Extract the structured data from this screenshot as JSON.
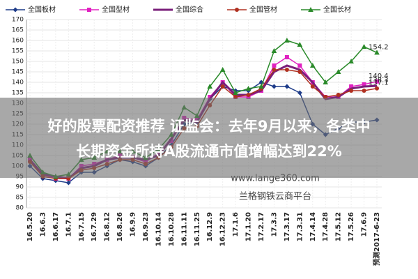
{
  "chart_data": {
    "type": "line",
    "categories": [
      "16.5.20",
      "16.6.3",
      "16.6.17",
      "16.7.1",
      "16.7.15",
      "16.7.29",
      "16.8.12",
      "16.8.26",
      "16.9.9",
      "16.9.23",
      "16.10.14",
      "16.10.28",
      "16.11.11",
      "16.11.25",
      "16.12.9",
      "16.12.23",
      "17.1.6",
      "17.1.20",
      "17.2.17",
      "17.3.3",
      "17.3.17",
      "17.3.31",
      "17.4.14",
      "17.4.28",
      "17.5.12",
      "17.5.26",
      "17.6.9",
      "预测2017-6-23"
    ],
    "series": [
      {
        "name": "全国板材",
        "color": "#1f3d8a",
        "marker": "diamond",
        "values": [
          100,
          94,
          93,
          92,
          97,
          97,
          100,
          103,
          102,
          100,
          104,
          110,
          120,
          121,
          132,
          138,
          136,
          136,
          140,
          138,
          138,
          135,
          120,
          115,
          118,
          121,
          121,
          122
        ]
      },
      {
        "name": "全国型材",
        "color": "#e020c0",
        "marker": "square",
        "values": [
          103,
          96,
          94,
          94,
          100,
          101,
          103,
          105,
          104,
          102,
          106,
          112,
          123,
          122,
          133,
          140,
          133,
          133,
          136,
          148,
          152,
          148,
          140,
          133,
          133,
          138,
          139,
          140.4
        ],
        "value_labels": {
          "27": "140.4"
        }
      },
      {
        "name": "全国综合",
        "color": "#7a1f7a",
        "marker": "none",
        "values": [
          103,
          96,
          95,
          94,
          99,
          100,
          103,
          104,
          104,
          103,
          105,
          113,
          122,
          121,
          132,
          140,
          134,
          134,
          136,
          145,
          148,
          146,
          140,
          132,
          133,
          137,
          138,
          138.3
        ],
        "value_labels": {
          "27": "138.3"
        }
      },
      {
        "name": "全国管材",
        "color": "#b03020",
        "marker": "circle",
        "values": [
          102,
          95,
          94,
          94,
          98,
          99,
          101,
          103,
          103,
          101,
          104,
          109,
          118,
          119,
          129,
          138,
          133,
          134,
          137,
          146,
          146,
          145,
          138,
          133,
          134,
          136,
          136,
          137.1
        ],
        "value_labels": {
          "27": "137.1"
        }
      },
      {
        "name": "全国长材",
        "color": "#2a8a2a",
        "marker": "triangle",
        "values": [
          105,
          97,
          95,
          96,
          103,
          104,
          107,
          107,
          107,
          104,
          108,
          115,
          128,
          124,
          138,
          146,
          135,
          137,
          138,
          155,
          160,
          158,
          148,
          140,
          145,
          150,
          157,
          154.2
        ],
        "value_labels": {
          "27": "154.2"
        }
      }
    ],
    "ylim": [
      80,
      170
    ],
    "yticks": [
      80,
      85,
      90,
      95,
      100,
      105,
      110,
      115,
      120,
      125,
      130,
      135,
      140,
      145,
      150,
      155,
      160,
      165,
      170
    ],
    "grid": true,
    "legend": "top"
  },
  "overlay": {
    "headline": [
      "好的股票配资推荐 证监会：去年9月以来，各类中",
      "长期资金所持A股流通市值增幅达到22%"
    ],
    "watermark": [
      "www.lange360.com",
      "兰格钢铁云商平台"
    ]
  }
}
